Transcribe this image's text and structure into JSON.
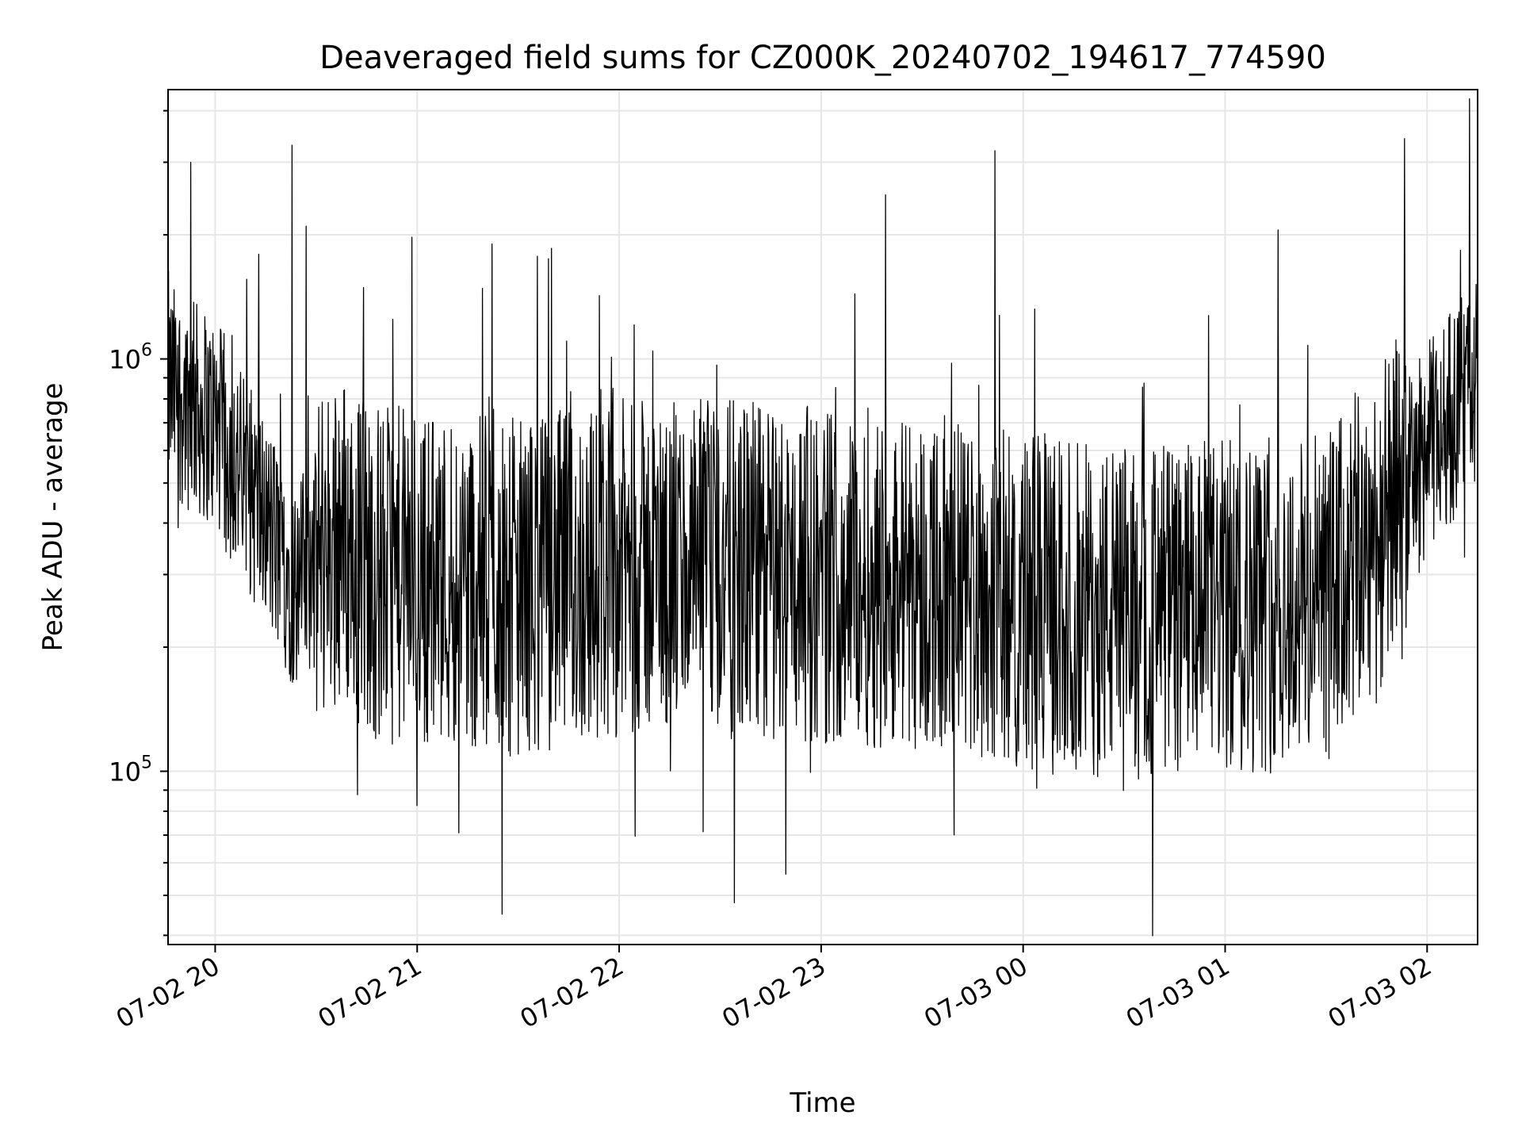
{
  "chart_data": {
    "type": "line",
    "title": "Deaveraged field sums for CZ000K_20240702_194617_774590",
    "xlabel": "Time",
    "ylabel": "Peak ADU - average",
    "yscale": "log",
    "ylim": [
      38000,
      4500000
    ],
    "xlim": [
      "07-02 19:46",
      "07-03 02:15"
    ],
    "x_ticks": [
      "07-02 20",
      "07-02 21",
      "07-02 22",
      "07-02 23",
      "07-03 00",
      "07-03 01",
      "07-03 02"
    ],
    "y_ticks": [
      {
        "base": "10",
        "exp": "5",
        "value": 100000
      },
      {
        "base": "10",
        "exp": "6",
        "value": 1000000
      }
    ],
    "grid": true,
    "line_color": "#000000",
    "envelope": {
      "x_hours": [
        -0.23,
        0.0,
        0.2,
        0.4,
        0.6,
        0.8,
        1.0,
        1.5,
        2.0,
        2.5,
        3.0,
        3.5,
        4.0,
        4.5,
        5.0,
        5.5,
        5.8,
        6.0,
        6.25
      ],
      "baseline": [
        850000,
        700000,
        450000,
        280000,
        380000,
        300000,
        300000,
        280000,
        310000,
        310000,
        300000,
        290000,
        260000,
        240000,
        250000,
        260000,
        400000,
        600000,
        900000
      ]
    },
    "spikes": [
      {
        "x_hours": -0.12,
        "value": 3000000
      },
      {
        "x_hours": 0.38,
        "value": 3300000
      },
      {
        "x_hours": 0.45,
        "value": 2100000
      },
      {
        "x_hours": 3.32,
        "value": 2500000
      },
      {
        "x_hours": 3.86,
        "value": 3200000
      },
      {
        "x_hours": 1.37,
        "value": 1900000
      },
      {
        "x_hours": 1.65,
        "value": 1750000
      },
      {
        "x_hours": 2.57,
        "value": 48000
      },
      {
        "x_hours": 1.42,
        "value": 45000
      }
    ]
  }
}
